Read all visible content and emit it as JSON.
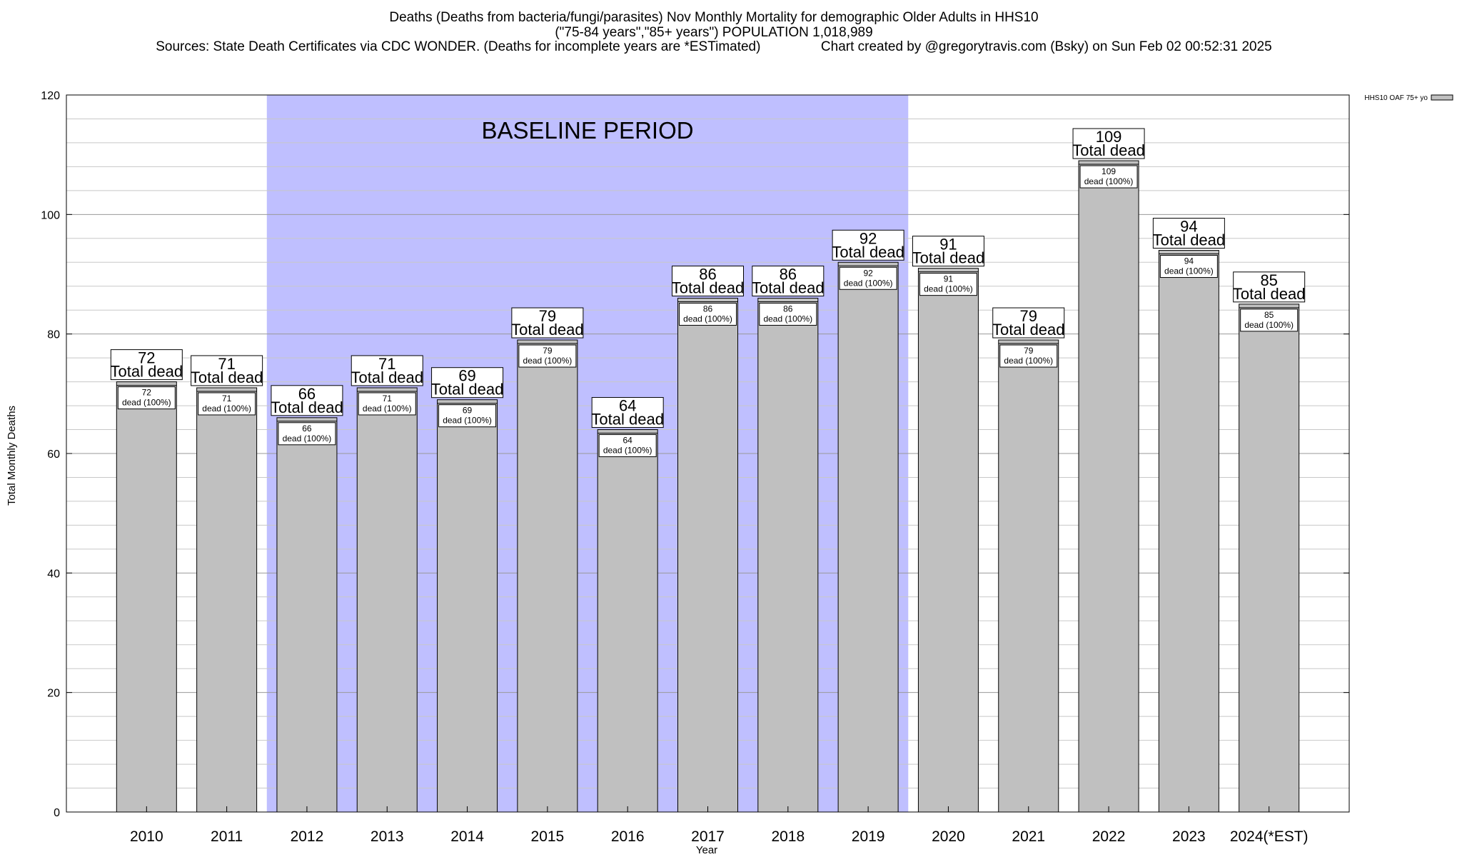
{
  "chart_data": {
    "type": "bar",
    "title_lines": [
      "Deaths (Deaths from bacteria/fungi/parasites) Nov Monthly Mortality for demographic Older Adults in HHS10",
      "(\"75-84 years\",\"85+ years\") POPULATION 1,018,989",
      "Sources: State Death Certificates via CDC WONDER. (Deaths for incomplete years are *ESTimated)                Chart created by @gregorytravis.com (Bsky) on Sun Feb 02 00:52:31 2025"
    ],
    "xlabel": "Year",
    "ylabel": "Total Monthly Deaths",
    "categories": [
      "2010",
      "2011",
      "2012",
      "2013",
      "2014",
      "2015",
      "2016",
      "2017",
      "2018",
      "2019",
      "2020",
      "2021",
      "2022",
      "2023",
      "2024(*EST)"
    ],
    "series": [
      {
        "name": "HHS10 OAF 75+ yo",
        "values": [
          72,
          71,
          66,
          71,
          69,
          79,
          64,
          86,
          86,
          92,
          91,
          79,
          109,
          94,
          85
        ],
        "color": "#c0c0c0"
      }
    ],
    "bar_label_total_suffix": "Total dead",
    "bar_label_inner_suffix": "dead (100%)",
    "ylim": [
      0,
      120
    ],
    "yticks": [
      0,
      20,
      40,
      60,
      80,
      100,
      120
    ],
    "grid": true,
    "minor_grid_step": 4,
    "baseline_band": {
      "label": "BASELINE PERIOD",
      "from_category": "2012",
      "to_category": "2019",
      "color": "#bfbfff"
    },
    "legend_position": "top-right"
  }
}
